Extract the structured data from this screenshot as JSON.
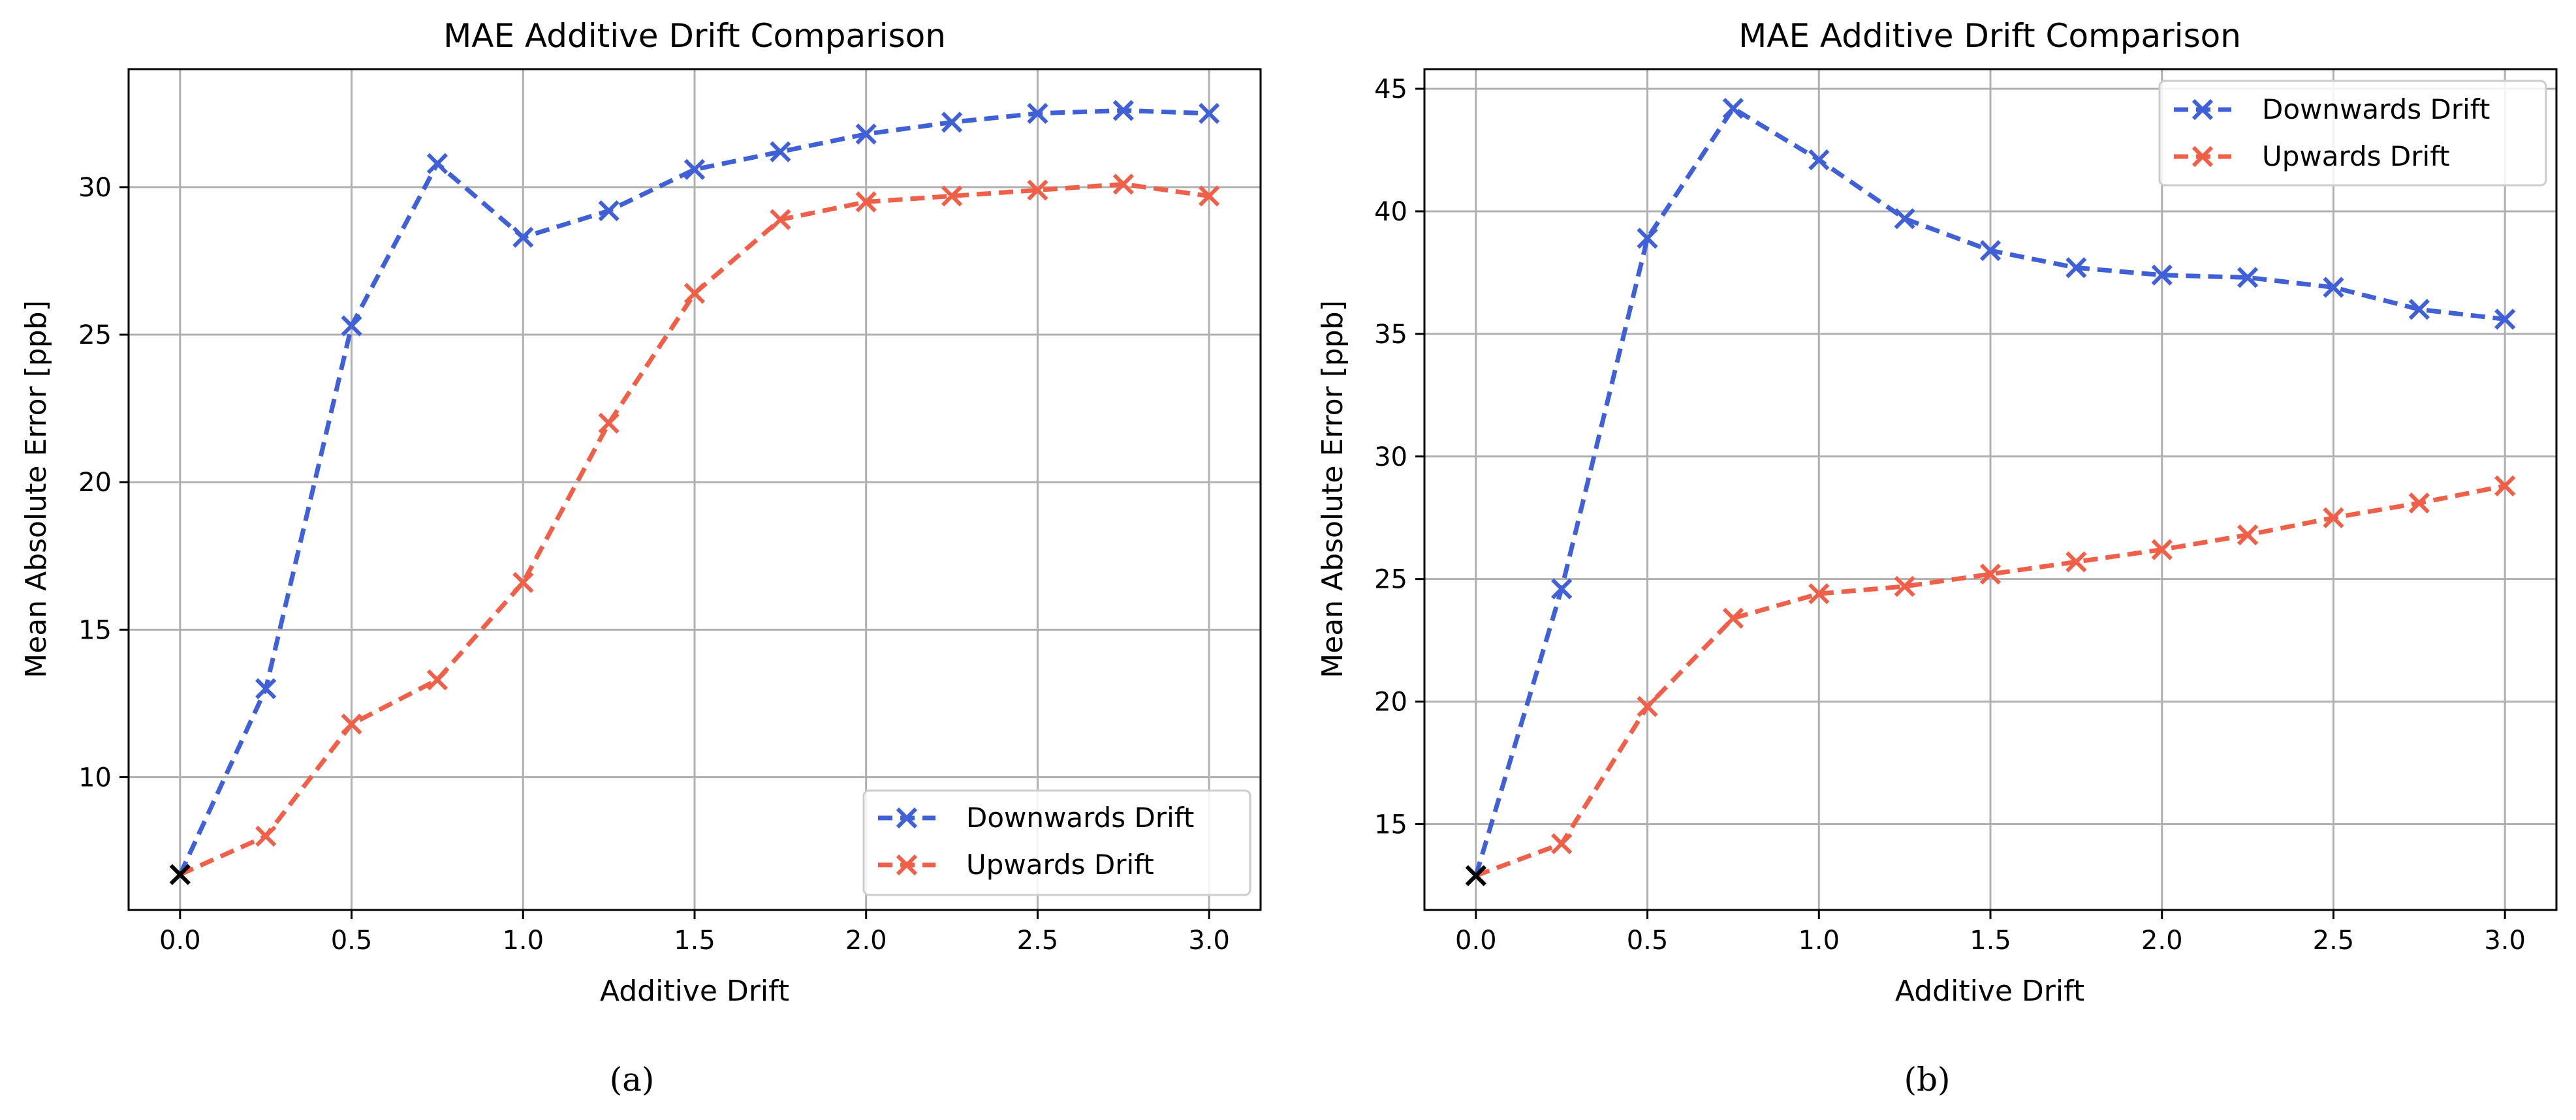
{
  "chart_data": [
    {
      "type": "line",
      "title": "MAE Additive Drift Comparison",
      "xlabel": "Additive Drift",
      "ylabel": "Mean Absolute Error [ppb]",
      "caption": "(a)",
      "xlim": [
        -0.15,
        3.15
      ],
      "ylim": [
        5.5,
        34.0
      ],
      "xticks": [
        0.0,
        0.5,
        1.0,
        1.5,
        2.0,
        2.5,
        3.0
      ],
      "xtick_labels": [
        "0.0",
        "0.5",
        "1.0",
        "1.5",
        "2.0",
        "2.5",
        "3.0"
      ],
      "yticks": [
        10,
        15,
        20,
        25,
        30
      ],
      "ytick_labels": [
        "10",
        "15",
        "20",
        "25",
        "30"
      ],
      "grid": true,
      "legend_position": "lower-right",
      "x": [
        0.0,
        0.25,
        0.5,
        0.75,
        1.0,
        1.25,
        1.5,
        1.75,
        2.0,
        2.25,
        2.5,
        2.75,
        3.0
      ],
      "series": [
        {
          "name": "Downwards Drift",
          "color": "#4060d8",
          "values": [
            6.7,
            13.0,
            25.3,
            30.8,
            28.3,
            29.2,
            30.6,
            31.2,
            31.8,
            32.2,
            32.5,
            32.6,
            32.5
          ]
        },
        {
          "name": "Upwards Drift",
          "color": "#f06048",
          "values": [
            6.7,
            8.0,
            11.8,
            13.3,
            16.6,
            22.0,
            26.4,
            28.9,
            29.5,
            29.7,
            29.9,
            30.1,
            29.7
          ]
        }
      ],
      "baseline_marker": {
        "x": 0.0,
        "y": 6.7,
        "color": "#000000"
      }
    },
    {
      "type": "line",
      "title": "MAE Additive Drift Comparison",
      "xlabel": "Additive Drift",
      "ylabel": "Mean Absolute Error [ppb]",
      "caption": "(b)",
      "xlim": [
        -0.15,
        3.15
      ],
      "ylim": [
        11.5,
        45.8
      ],
      "xticks": [
        0.0,
        0.5,
        1.0,
        1.5,
        2.0,
        2.5,
        3.0
      ],
      "xtick_labels": [
        "0.0",
        "0.5",
        "1.0",
        "1.5",
        "2.0",
        "2.5",
        "3.0"
      ],
      "yticks": [
        15,
        20,
        25,
        30,
        35,
        40,
        45
      ],
      "ytick_labels": [
        "15",
        "20",
        "25",
        "30",
        "35",
        "40",
        "45"
      ],
      "grid": true,
      "legend_position": "upper-right",
      "x": [
        0.0,
        0.25,
        0.5,
        0.75,
        1.0,
        1.25,
        1.5,
        1.75,
        2.0,
        2.25,
        2.5,
        2.75,
        3.0
      ],
      "series": [
        {
          "name": "Downwards Drift",
          "color": "#4060d8",
          "values": [
            12.9,
            24.6,
            38.9,
            44.2,
            42.1,
            39.7,
            38.4,
            37.7,
            37.4,
            37.3,
            36.9,
            36.0,
            35.6
          ]
        },
        {
          "name": "Upwards Drift",
          "color": "#f06048",
          "values": [
            12.9,
            14.2,
            19.8,
            23.4,
            24.4,
            24.7,
            25.2,
            25.7,
            26.2,
            26.8,
            27.5,
            28.1,
            28.8
          ]
        }
      ],
      "baseline_marker": {
        "x": 0.0,
        "y": 12.9,
        "color": "#000000"
      }
    }
  ]
}
